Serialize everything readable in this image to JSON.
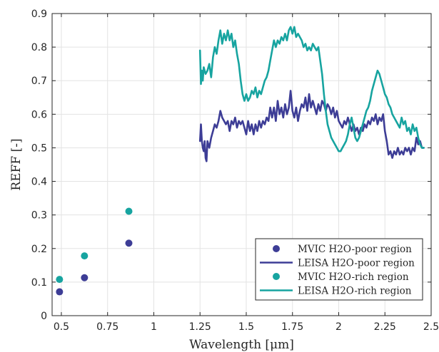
{
  "chart_data": {
    "type": "line",
    "xlabel": "Wavelength [μm]",
    "ylabel": "REFF [-]",
    "xlim": [
      0.45,
      2.5
    ],
    "ylim": [
      0,
      0.9
    ],
    "xticks": [
      "0.5",
      "0.75",
      "1",
      "1.25",
      "1.5",
      "1.75",
      "2",
      "2.25",
      "2.5"
    ],
    "xtick_values": [
      0.5,
      0.75,
      1,
      1.25,
      1.5,
      1.75,
      2,
      2.25,
      2.5
    ],
    "yticks": [
      "0",
      "0.1",
      "0.2",
      "0.3",
      "0.4",
      "0.5",
      "0.6",
      "0.7",
      "0.8",
      "0.9"
    ],
    "ytick_values": [
      0,
      0.1,
      0.2,
      0.3,
      0.4,
      0.5,
      0.6,
      0.7,
      0.8,
      0.9
    ],
    "grid": true,
    "legend_position": "bottom-right",
    "series": [
      {
        "name": "MVIC H2O-poor region",
        "kind": "scatter",
        "color": "#3d3d96",
        "points": [
          [
            0.49,
            0.071
          ],
          [
            0.625,
            0.113
          ],
          [
            0.865,
            0.216
          ]
        ]
      },
      {
        "name": "LEISA H2O-poor region",
        "kind": "line",
        "color": "#3d3d96",
        "points": [
          [
            1.25,
            0.52
          ],
          [
            1.255,
            0.57
          ],
          [
            1.26,
            0.52
          ],
          [
            1.265,
            0.5
          ],
          [
            1.27,
            0.49
          ],
          [
            1.275,
            0.52
          ],
          [
            1.28,
            0.47
          ],
          [
            1.285,
            0.46
          ],
          [
            1.29,
            0.52
          ],
          [
            1.3,
            0.5
          ],
          [
            1.31,
            0.53
          ],
          [
            1.32,
            0.55
          ],
          [
            1.33,
            0.57
          ],
          [
            1.34,
            0.56
          ],
          [
            1.35,
            0.58
          ],
          [
            1.36,
            0.61
          ],
          [
            1.37,
            0.59
          ],
          [
            1.38,
            0.58
          ],
          [
            1.39,
            0.57
          ],
          [
            1.4,
            0.58
          ],
          [
            1.41,
            0.55
          ],
          [
            1.42,
            0.58
          ],
          [
            1.43,
            0.57
          ],
          [
            1.44,
            0.59
          ],
          [
            1.45,
            0.56
          ],
          [
            1.46,
            0.58
          ],
          [
            1.47,
            0.57
          ],
          [
            1.48,
            0.58
          ],
          [
            1.49,
            0.56
          ],
          [
            1.5,
            0.54
          ],
          [
            1.51,
            0.58
          ],
          [
            1.52,
            0.55
          ],
          [
            1.53,
            0.57
          ],
          [
            1.54,
            0.54
          ],
          [
            1.55,
            0.57
          ],
          [
            1.56,
            0.55
          ],
          [
            1.57,
            0.58
          ],
          [
            1.58,
            0.56
          ],
          [
            1.59,
            0.58
          ],
          [
            1.6,
            0.57
          ],
          [
            1.61,
            0.59
          ],
          [
            1.62,
            0.58
          ],
          [
            1.63,
            0.62
          ],
          [
            1.64,
            0.59
          ],
          [
            1.65,
            0.62
          ],
          [
            1.66,
            0.58
          ],
          [
            1.67,
            0.64
          ],
          [
            1.68,
            0.6
          ],
          [
            1.69,
            0.62
          ],
          [
            1.7,
            0.59
          ],
          [
            1.71,
            0.63
          ],
          [
            1.72,
            0.6
          ],
          [
            1.73,
            0.62
          ],
          [
            1.74,
            0.67
          ],
          [
            1.75,
            0.61
          ],
          [
            1.76,
            0.59
          ],
          [
            1.77,
            0.62
          ],
          [
            1.78,
            0.58
          ],
          [
            1.79,
            0.61
          ],
          [
            1.8,
            0.63
          ],
          [
            1.81,
            0.62
          ],
          [
            1.82,
            0.65
          ],
          [
            1.83,
            0.61
          ],
          [
            1.84,
            0.66
          ],
          [
            1.85,
            0.62
          ],
          [
            1.86,
            0.64
          ],
          [
            1.87,
            0.62
          ],
          [
            1.88,
            0.6
          ],
          [
            1.89,
            0.63
          ],
          [
            1.9,
            0.61
          ],
          [
            1.91,
            0.64
          ],
          [
            1.92,
            0.63
          ],
          [
            1.93,
            0.61
          ],
          [
            1.94,
            0.63
          ],
          [
            1.95,
            0.62
          ],
          [
            1.96,
            0.6
          ],
          [
            1.97,
            0.62
          ],
          [
            1.98,
            0.59
          ],
          [
            1.99,
            0.61
          ],
          [
            2.0,
            0.58
          ],
          [
            2.01,
            0.57
          ],
          [
            2.02,
            0.56
          ],
          [
            2.03,
            0.58
          ],
          [
            2.04,
            0.57
          ],
          [
            2.05,
            0.59
          ],
          [
            2.06,
            0.57
          ],
          [
            2.07,
            0.55
          ],
          [
            2.08,
            0.57
          ],
          [
            2.09,
            0.55
          ],
          [
            2.1,
            0.56
          ],
          [
            2.11,
            0.54
          ],
          [
            2.12,
            0.56
          ],
          [
            2.13,
            0.55
          ],
          [
            2.14,
            0.57
          ],
          [
            2.15,
            0.56
          ],
          [
            2.16,
            0.58
          ],
          [
            2.17,
            0.57
          ],
          [
            2.18,
            0.59
          ],
          [
            2.19,
            0.58
          ],
          [
            2.2,
            0.6
          ],
          [
            2.21,
            0.57
          ],
          [
            2.22,
            0.59
          ],
          [
            2.23,
            0.58
          ],
          [
            2.24,
            0.6
          ],
          [
            2.25,
            0.55
          ],
          [
            2.26,
            0.52
          ],
          [
            2.27,
            0.48
          ],
          [
            2.28,
            0.49
          ],
          [
            2.29,
            0.47
          ],
          [
            2.3,
            0.49
          ],
          [
            2.31,
            0.48
          ],
          [
            2.32,
            0.5
          ],
          [
            2.33,
            0.48
          ],
          [
            2.34,
            0.49
          ],
          [
            2.35,
            0.48
          ],
          [
            2.36,
            0.5
          ],
          [
            2.37,
            0.49
          ],
          [
            2.38,
            0.5
          ],
          [
            2.39,
            0.48
          ],
          [
            2.4,
            0.5
          ],
          [
            2.41,
            0.49
          ],
          [
            2.42,
            0.53
          ],
          [
            2.43,
            0.51
          ],
          [
            2.44,
            0.52
          ],
          [
            2.45,
            0.5
          ],
          [
            2.46,
            0.5
          ]
        ]
      },
      {
        "name": "MVIC H2O-rich region",
        "kind": "scatter",
        "color": "#17a4a0",
        "points": [
          [
            0.49,
            0.108
          ],
          [
            0.625,
            0.178
          ],
          [
            0.865,
            0.311
          ]
        ]
      },
      {
        "name": "LEISA H2O-rich region",
        "kind": "line",
        "color": "#17a4a0",
        "points": [
          [
            1.25,
            0.79
          ],
          [
            1.255,
            0.69
          ],
          [
            1.26,
            0.73
          ],
          [
            1.265,
            0.7
          ],
          [
            1.27,
            0.74
          ],
          [
            1.28,
            0.72
          ],
          [
            1.29,
            0.73
          ],
          [
            1.3,
            0.75
          ],
          [
            1.31,
            0.71
          ],
          [
            1.32,
            0.77
          ],
          [
            1.33,
            0.8
          ],
          [
            1.34,
            0.78
          ],
          [
            1.35,
            0.82
          ],
          [
            1.36,
            0.85
          ],
          [
            1.37,
            0.81
          ],
          [
            1.38,
            0.84
          ],
          [
            1.39,
            0.82
          ],
          [
            1.4,
            0.85
          ],
          [
            1.41,
            0.82
          ],
          [
            1.42,
            0.84
          ],
          [
            1.43,
            0.8
          ],
          [
            1.44,
            0.82
          ],
          [
            1.45,
            0.78
          ],
          [
            1.46,
            0.75
          ],
          [
            1.47,
            0.7
          ],
          [
            1.48,
            0.66
          ],
          [
            1.49,
            0.64
          ],
          [
            1.5,
            0.66
          ],
          [
            1.51,
            0.64
          ],
          [
            1.52,
            0.65
          ],
          [
            1.53,
            0.67
          ],
          [
            1.54,
            0.66
          ],
          [
            1.55,
            0.68
          ],
          [
            1.56,
            0.65
          ],
          [
            1.57,
            0.67
          ],
          [
            1.58,
            0.66
          ],
          [
            1.59,
            0.68
          ],
          [
            1.6,
            0.7
          ],
          [
            1.61,
            0.71
          ],
          [
            1.62,
            0.73
          ],
          [
            1.63,
            0.76
          ],
          [
            1.64,
            0.79
          ],
          [
            1.65,
            0.82
          ],
          [
            1.66,
            0.8
          ],
          [
            1.67,
            0.82
          ],
          [
            1.68,
            0.81
          ],
          [
            1.69,
            0.83
          ],
          [
            1.7,
            0.82
          ],
          [
            1.71,
            0.84
          ],
          [
            1.72,
            0.82
          ],
          [
            1.73,
            0.85
          ],
          [
            1.74,
            0.86
          ],
          [
            1.75,
            0.84
          ],
          [
            1.76,
            0.86
          ],
          [
            1.77,
            0.83
          ],
          [
            1.78,
            0.84
          ],
          [
            1.79,
            0.83
          ],
          [
            1.8,
            0.82
          ],
          [
            1.81,
            0.8
          ],
          [
            1.82,
            0.81
          ],
          [
            1.83,
            0.79
          ],
          [
            1.84,
            0.8
          ],
          [
            1.85,
            0.79
          ],
          [
            1.86,
            0.81
          ],
          [
            1.87,
            0.8
          ],
          [
            1.88,
            0.79
          ],
          [
            1.89,
            0.8
          ],
          [
            1.9,
            0.76
          ],
          [
            1.91,
            0.72
          ],
          [
            1.92,
            0.66
          ],
          [
            1.93,
            0.61
          ],
          [
            1.94,
            0.57
          ],
          [
            1.95,
            0.55
          ],
          [
            1.96,
            0.53
          ],
          [
            1.97,
            0.52
          ],
          [
            1.98,
            0.51
          ],
          [
            1.99,
            0.5
          ],
          [
            2.0,
            0.49
          ],
          [
            2.01,
            0.49
          ],
          [
            2.02,
            0.5
          ],
          [
            2.03,
            0.51
          ],
          [
            2.04,
            0.52
          ],
          [
            2.05,
            0.54
          ],
          [
            2.06,
            0.57
          ],
          [
            2.07,
            0.59
          ],
          [
            2.08,
            0.56
          ],
          [
            2.09,
            0.53
          ],
          [
            2.1,
            0.52
          ],
          [
            2.11,
            0.53
          ],
          [
            2.12,
            0.55
          ],
          [
            2.13,
            0.57
          ],
          [
            2.14,
            0.59
          ],
          [
            2.15,
            0.61
          ],
          [
            2.16,
            0.62
          ],
          [
            2.17,
            0.64
          ],
          [
            2.18,
            0.67
          ],
          [
            2.19,
            0.69
          ],
          [
            2.2,
            0.71
          ],
          [
            2.21,
            0.73
          ],
          [
            2.22,
            0.72
          ],
          [
            2.23,
            0.7
          ],
          [
            2.24,
            0.68
          ],
          [
            2.25,
            0.66
          ],
          [
            2.26,
            0.65
          ],
          [
            2.27,
            0.63
          ],
          [
            2.28,
            0.62
          ],
          [
            2.29,
            0.6
          ],
          [
            2.3,
            0.59
          ],
          [
            2.31,
            0.58
          ],
          [
            2.32,
            0.57
          ],
          [
            2.33,
            0.56
          ],
          [
            2.34,
            0.59
          ],
          [
            2.35,
            0.57
          ],
          [
            2.36,
            0.58
          ],
          [
            2.37,
            0.55
          ],
          [
            2.38,
            0.56
          ],
          [
            2.39,
            0.54
          ],
          [
            2.4,
            0.57
          ],
          [
            2.41,
            0.55
          ],
          [
            2.42,
            0.56
          ],
          [
            2.43,
            0.53
          ],
          [
            2.44,
            0.51
          ],
          [
            2.45,
            0.5
          ],
          [
            2.46,
            0.5
          ]
        ]
      }
    ]
  }
}
